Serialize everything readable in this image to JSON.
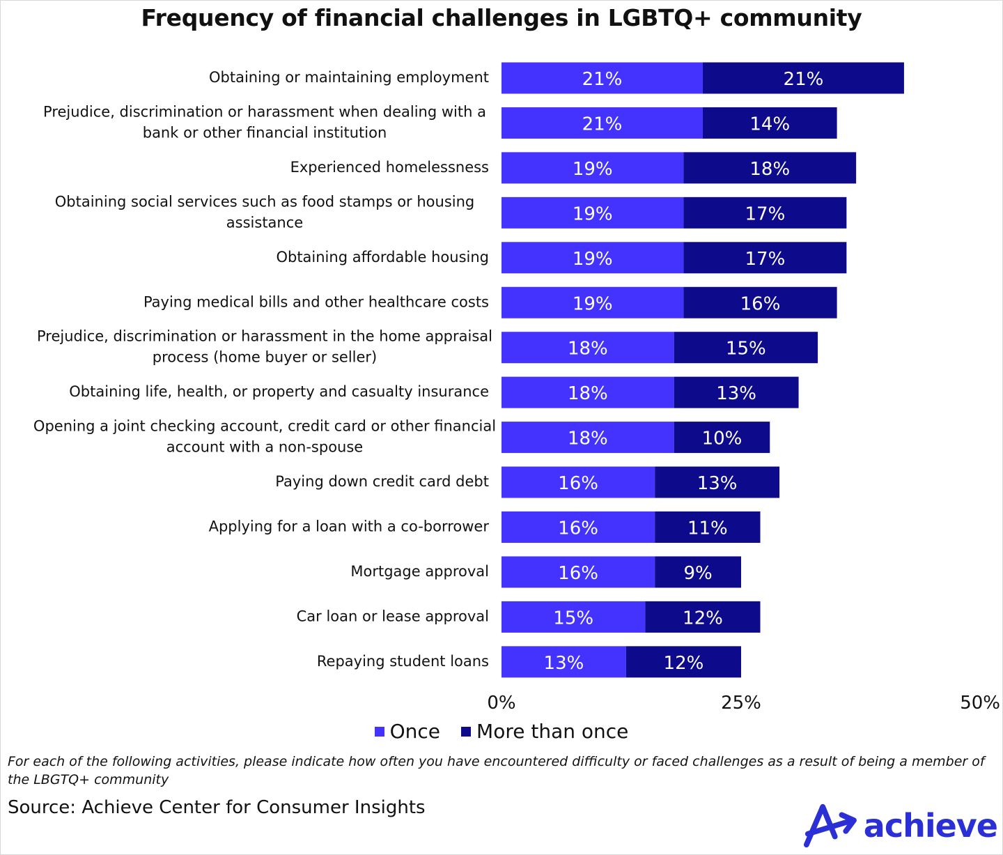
{
  "chart_data": {
    "type": "bar",
    "orientation": "horizontal",
    "stacked": true,
    "title": "Frequency of financial challenges in LGBTQ+ community",
    "categories": [
      "Obtaining or maintaining employment",
      "Prejudice, discrimination or harassment when dealing with a bank or other financial institution",
      "Experienced homelessness",
      "Obtaining social services such as food stamps or housing assistance",
      "Obtaining affordable housing",
      "Paying medical bills and other healthcare costs",
      "Prejudice, discrimination or harassment in the home appraisal process (home buyer or seller)",
      "Obtaining life, health, or property and casualty insurance",
      "Opening a joint checking account, credit card or other financial account with a non-spouse",
      "Paying down credit card debt",
      "Applying for a loan with a co-borrower",
      "Mortgage approval",
      "Car loan or lease approval",
      "Repaying student loans"
    ],
    "category_lines": [
      [
        "Obtaining or maintaining employment"
      ],
      [
        "Prejudice, discrimination or harassment when dealing with a",
        "bank or other financial institution"
      ],
      [
        "Experienced homelessness"
      ],
      [
        "Obtaining social services such as food stamps or housing",
        "assistance"
      ],
      [
        "Obtaining affordable housing"
      ],
      [
        "Paying medical bills and other healthcare costs"
      ],
      [
        "Prejudice, discrimination or harassment in the home appraisal",
        "process (home buyer or seller)"
      ],
      [
        "Obtaining life, health, or property and casualty insurance"
      ],
      [
        "Opening a joint checking account, credit card or other financial",
        "account with a non-spouse"
      ],
      [
        "Paying down credit card debt"
      ],
      [
        "Applying for a loan with a co-borrower"
      ],
      [
        "Mortgage approval"
      ],
      [
        "Car loan or lease approval"
      ],
      [
        "Repaying student loans"
      ]
    ],
    "series": [
      {
        "name": "Once",
        "color": "#4433ff",
        "values": [
          21,
          21,
          19,
          19,
          19,
          19,
          18,
          18,
          18,
          16,
          16,
          16,
          15,
          13
        ]
      },
      {
        "name": "More than once",
        "color": "#0d0a8c",
        "values": [
          21,
          14,
          18,
          17,
          17,
          16,
          15,
          13,
          10,
          13,
          11,
          9,
          12,
          12
        ]
      }
    ],
    "value_suffix": "%",
    "xlim": [
      0,
      50
    ],
    "xticks": [
      0,
      25,
      50
    ],
    "xtick_labels": [
      "0%",
      "25%",
      "50%"
    ],
    "grid": false,
    "legend_position": "bottom"
  },
  "footnote": "For each of the following activities, please indicate how often you have encountered difficulty or faced challenges as a result of being a member of the LBGTQ+ community",
  "source": "Source: Achieve Center for Consumer Insights",
  "logo_text": "achieve",
  "logo_color": "#2a2fd6"
}
